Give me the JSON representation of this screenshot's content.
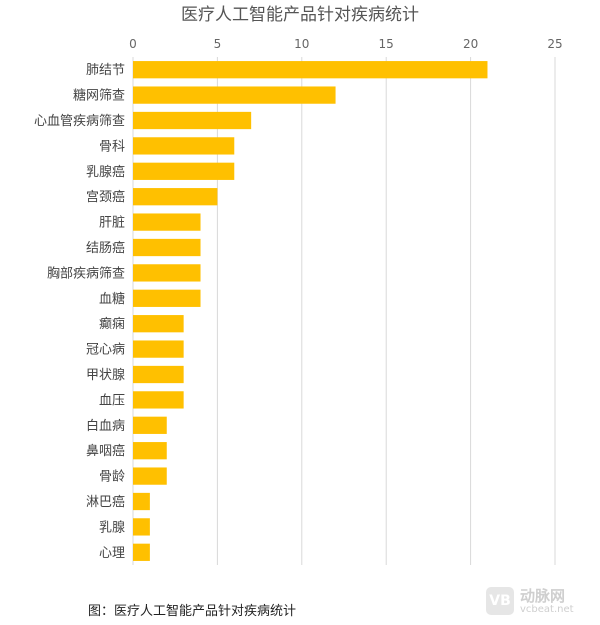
{
  "chart_data": {
    "type": "bar",
    "orientation": "horizontal",
    "title": "医疗人工智能产品针对疾病统计",
    "categories": [
      "肺结节",
      "糖网筛查",
      "心血管疾病筛查",
      "骨科",
      "乳腺癌",
      "宫颈癌",
      "肝脏",
      "结肠癌",
      "胸部疾病筛查",
      "血糖",
      "癫痫",
      "冠心病",
      "甲状腺",
      "血压",
      "白血病",
      "鼻咽癌",
      "骨龄",
      "淋巴癌",
      "乳腺",
      "心理"
    ],
    "values": [
      21,
      12,
      7,
      6,
      6,
      5,
      4,
      4,
      4,
      4,
      3,
      3,
      3,
      3,
      2,
      2,
      2,
      1,
      1,
      1
    ],
    "xlim": [
      0,
      25
    ],
    "xticks": [
      0,
      5,
      10,
      15,
      20,
      25
    ],
    "xaxis_position": "top",
    "grid": "vertical",
    "bar_color": "#FFC000",
    "grid_color": "#d9d9d9"
  },
  "caption": "图：医疗人工智能产品针对疾病统计",
  "watermark": {
    "logo_text": "VB",
    "name": "动脉网",
    "url": "vcbeat.net"
  }
}
